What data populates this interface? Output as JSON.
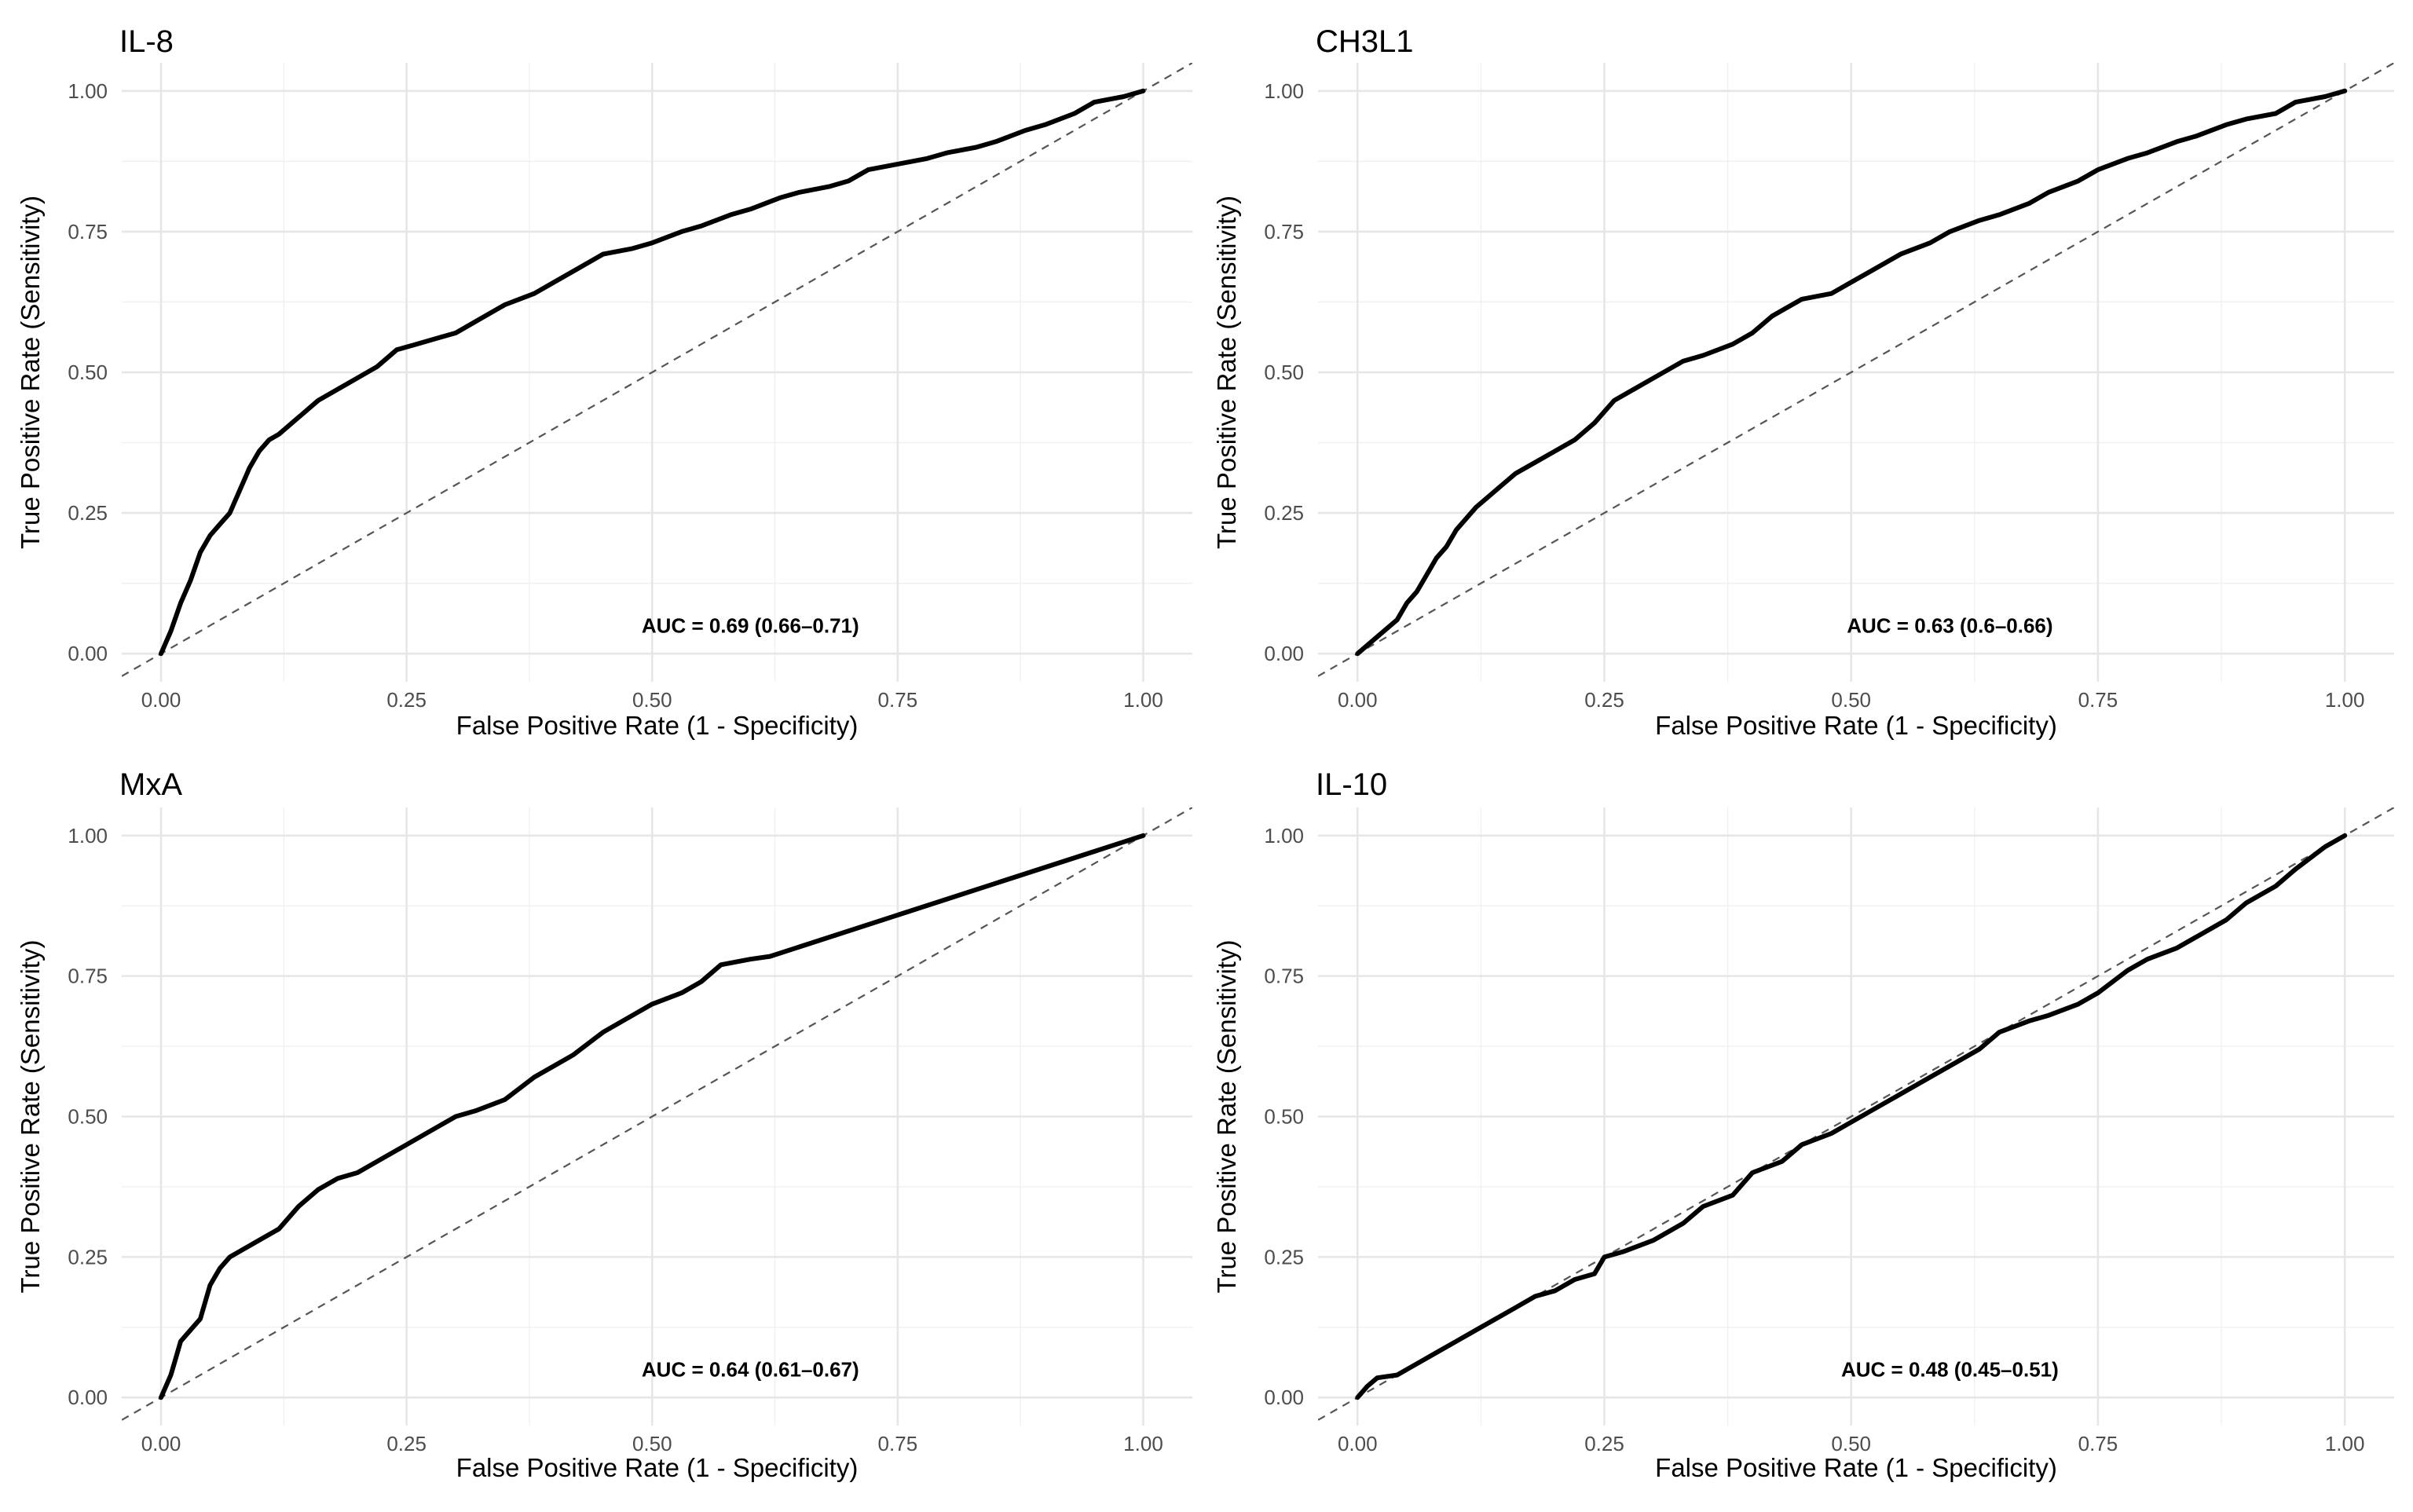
{
  "chart_data": [
    {
      "type": "line",
      "title": "IL-8",
      "xlabel": "False Positive Rate (1 - Specificity)",
      "ylabel": "True Positive Rate (Sensitivity)",
      "xlim": [
        -0.04,
        1.05
      ],
      "ylim": [
        -0.05,
        1.05
      ],
      "x_ticks": [
        "0.00",
        "0.25",
        "0.50",
        "0.75",
        "1.00"
      ],
      "y_ticks": [
        "0.00",
        "0.25",
        "0.50",
        "0.75",
        "1.00"
      ],
      "grid": true,
      "reference_line": "diagonal dashed",
      "annotation": {
        "text": "AUC = 0.69 (0.66–0.71)",
        "x": 0.6,
        "y": 0.05
      },
      "series": [
        {
          "x": [
            0,
            0.01,
            0.02,
            0.03,
            0.04,
            0.05,
            0.06,
            0.07,
            0.08,
            0.09,
            0.1,
            0.11,
            0.12,
            0.14,
            0.16,
            0.18,
            0.2,
            0.22,
            0.24,
            0.26,
            0.28,
            0.3,
            0.32,
            0.35,
            0.38,
            0.4,
            0.42,
            0.45,
            0.48,
            0.5,
            0.53,
            0.55,
            0.58,
            0.6,
            0.63,
            0.65,
            0.68,
            0.7,
            0.72,
            0.75,
            0.78,
            0.8,
            0.83,
            0.85,
            0.88,
            0.9,
            0.93,
            0.95,
            0.98,
            1.0
          ],
          "y": [
            0,
            0.04,
            0.09,
            0.13,
            0.18,
            0.21,
            0.23,
            0.25,
            0.29,
            0.33,
            0.36,
            0.38,
            0.39,
            0.42,
            0.45,
            0.47,
            0.49,
            0.51,
            0.54,
            0.55,
            0.56,
            0.57,
            0.59,
            0.62,
            0.64,
            0.66,
            0.68,
            0.71,
            0.72,
            0.73,
            0.75,
            0.76,
            0.78,
            0.79,
            0.81,
            0.82,
            0.83,
            0.84,
            0.86,
            0.87,
            0.88,
            0.89,
            0.9,
            0.91,
            0.93,
            0.94,
            0.96,
            0.98,
            0.99,
            1.0
          ]
        }
      ]
    },
    {
      "type": "line",
      "title": "CH3L1",
      "xlabel": "False Positive Rate (1 - Specificity)",
      "ylabel": "True Positive Rate (Sensitivity)",
      "xlim": [
        -0.04,
        1.05
      ],
      "ylim": [
        -0.05,
        1.05
      ],
      "x_ticks": [
        "0.00",
        "0.25",
        "0.50",
        "0.75",
        "1.00"
      ],
      "y_ticks": [
        "0.00",
        "0.25",
        "0.50",
        "0.75",
        "1.00"
      ],
      "grid": true,
      "reference_line": "diagonal dashed",
      "annotation": {
        "text": "AUC = 0.63 (0.6–0.66)",
        "x": 0.6,
        "y": 0.05
      },
      "series": [
        {
          "x": [
            0,
            0.02,
            0.04,
            0.05,
            0.06,
            0.07,
            0.08,
            0.09,
            0.1,
            0.12,
            0.14,
            0.16,
            0.18,
            0.2,
            0.22,
            0.24,
            0.26,
            0.28,
            0.3,
            0.33,
            0.35,
            0.38,
            0.4,
            0.42,
            0.45,
            0.48,
            0.5,
            0.52,
            0.55,
            0.58,
            0.6,
            0.63,
            0.65,
            0.68,
            0.7,
            0.73,
            0.75,
            0.78,
            0.8,
            0.83,
            0.85,
            0.88,
            0.9,
            0.93,
            0.95,
            0.98,
            1.0
          ],
          "y": [
            0,
            0.03,
            0.06,
            0.09,
            0.11,
            0.14,
            0.17,
            0.19,
            0.22,
            0.26,
            0.29,
            0.32,
            0.34,
            0.36,
            0.38,
            0.41,
            0.45,
            0.47,
            0.49,
            0.52,
            0.53,
            0.55,
            0.57,
            0.6,
            0.63,
            0.64,
            0.66,
            0.68,
            0.71,
            0.73,
            0.75,
            0.77,
            0.78,
            0.8,
            0.82,
            0.84,
            0.86,
            0.88,
            0.89,
            0.91,
            0.92,
            0.94,
            0.95,
            0.96,
            0.98,
            0.99,
            1.0
          ]
        }
      ]
    },
    {
      "type": "line",
      "title": "MxA",
      "xlabel": "False Positive Rate (1 - Specificity)",
      "ylabel": "True Positive Rate (Sensitivity)",
      "xlim": [
        -0.04,
        1.05
      ],
      "ylim": [
        -0.05,
        1.05
      ],
      "x_ticks": [
        "0.00",
        "0.25",
        "0.50",
        "0.75",
        "1.00"
      ],
      "y_ticks": [
        "0.00",
        "0.25",
        "0.50",
        "0.75",
        "1.00"
      ],
      "grid": true,
      "reference_line": "diagonal dashed",
      "annotation": {
        "text": "AUC = 0.64 (0.61–0.67)",
        "x": 0.6,
        "y": 0.05
      },
      "series": [
        {
          "x": [
            0,
            0.01,
            0.015,
            0.02,
            0.03,
            0.04,
            0.05,
            0.06,
            0.07,
            0.08,
            0.1,
            0.12,
            0.14,
            0.16,
            0.18,
            0.2,
            0.22,
            0.25,
            0.28,
            0.3,
            0.32,
            0.35,
            0.38,
            0.4,
            0.42,
            0.45,
            0.48,
            0.5,
            0.53,
            0.55,
            0.57,
            0.6,
            0.62,
            1.0
          ],
          "y": [
            0,
            0.04,
            0.07,
            0.1,
            0.12,
            0.14,
            0.2,
            0.23,
            0.25,
            0.26,
            0.28,
            0.3,
            0.34,
            0.37,
            0.39,
            0.4,
            0.42,
            0.45,
            0.48,
            0.5,
            0.51,
            0.53,
            0.57,
            0.59,
            0.61,
            0.65,
            0.68,
            0.7,
            0.72,
            0.74,
            0.77,
            0.78,
            0.785,
            1.0
          ]
        }
      ]
    },
    {
      "type": "line",
      "title": "IL-10",
      "xlabel": "False Positive Rate (1 - Specificity)",
      "ylabel": "True Positive Rate (Sensitivity)",
      "xlim": [
        -0.04,
        1.05
      ],
      "ylim": [
        -0.05,
        1.05
      ],
      "x_ticks": [
        "0.00",
        "0.25",
        "0.50",
        "0.75",
        "1.00"
      ],
      "y_ticks": [
        "0.00",
        "0.25",
        "0.50",
        "0.75",
        "1.00"
      ],
      "grid": true,
      "reference_line": "diagonal dashed",
      "annotation": {
        "text": "AUC = 0.48 (0.45–0.51)",
        "x": 0.6,
        "y": 0.05
      },
      "series": [
        {
          "x": [
            0,
            0.01,
            0.02,
            0.04,
            0.06,
            0.08,
            0.1,
            0.12,
            0.14,
            0.16,
            0.18,
            0.2,
            0.22,
            0.24,
            0.25,
            0.27,
            0.3,
            0.33,
            0.35,
            0.38,
            0.4,
            0.43,
            0.45,
            0.48,
            0.5,
            0.53,
            0.55,
            0.58,
            0.6,
            0.63,
            0.65,
            0.68,
            0.7,
            0.73,
            0.75,
            0.78,
            0.8,
            0.83,
            0.85,
            0.88,
            0.9,
            0.93,
            0.95,
            0.98,
            1.0
          ],
          "y": [
            0,
            0.02,
            0.035,
            0.04,
            0.06,
            0.08,
            0.1,
            0.12,
            0.14,
            0.16,
            0.18,
            0.19,
            0.21,
            0.22,
            0.25,
            0.26,
            0.28,
            0.31,
            0.34,
            0.36,
            0.4,
            0.42,
            0.45,
            0.47,
            0.49,
            0.52,
            0.54,
            0.57,
            0.59,
            0.62,
            0.65,
            0.67,
            0.68,
            0.7,
            0.72,
            0.76,
            0.78,
            0.8,
            0.82,
            0.85,
            0.88,
            0.91,
            0.94,
            0.98,
            1.0
          ]
        }
      ]
    }
  ]
}
